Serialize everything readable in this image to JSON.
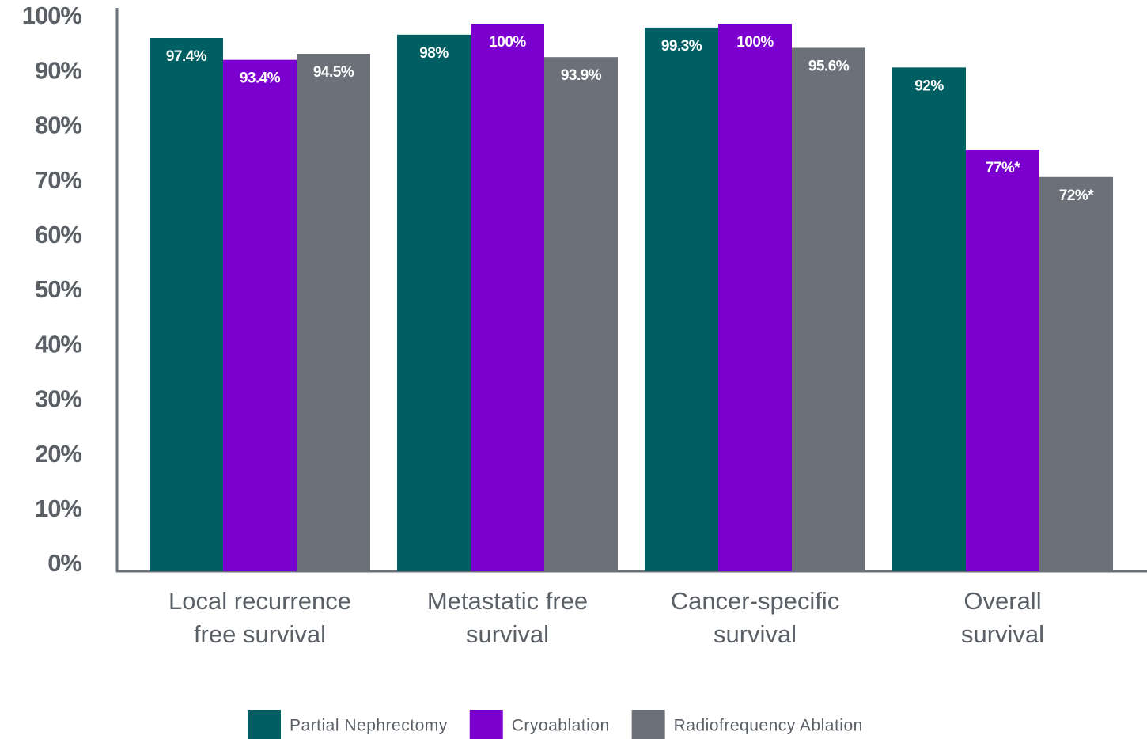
{
  "chart_data": {
    "type": "bar",
    "categories": [
      [
        "Local recurrence",
        "free survival"
      ],
      [
        "Metastatic free",
        "survival"
      ],
      [
        "Cancer-specific",
        "survival"
      ],
      [
        "Overall",
        "survival"
      ]
    ],
    "series": [
      {
        "name": "Partial Nephrectomy",
        "color": "#005f63",
        "values": [
          97.4,
          98,
          99.3,
          92
        ],
        "value_labels": [
          "97.4%",
          "98%",
          "99.3%",
          "92%"
        ]
      },
      {
        "name": "Cryoablation",
        "color": "#7b00cf",
        "values": [
          93.4,
          100,
          100,
          77
        ],
        "value_labels": [
          "93.4%",
          "100%",
          "100%",
          "77%*"
        ]
      },
      {
        "name": "Radiofrequency Ablation",
        "color": "#6b7079",
        "values": [
          94.5,
          93.9,
          95.6,
          72
        ],
        "value_labels": [
          "94.5%",
          "93.9%",
          "95.6%",
          "72%*"
        ]
      }
    ],
    "ylim": [
      0,
      100
    ],
    "yticks": [
      {
        "value": 0,
        "label": "0%"
      },
      {
        "value": 10,
        "label": "10%"
      },
      {
        "value": 20,
        "label": "20%"
      },
      {
        "value": 30,
        "label": "30%"
      },
      {
        "value": 40,
        "label": "40%"
      },
      {
        "value": 50,
        "label": "50%"
      },
      {
        "value": 60,
        "label": "60%"
      },
      {
        "value": 70,
        "label": "70%"
      },
      {
        "value": 80,
        "label": "80%"
      },
      {
        "value": 90,
        "label": "90%"
      },
      {
        "value": 100,
        "label": "100%"
      }
    ],
    "grid": false,
    "legend": "bottom"
  }
}
